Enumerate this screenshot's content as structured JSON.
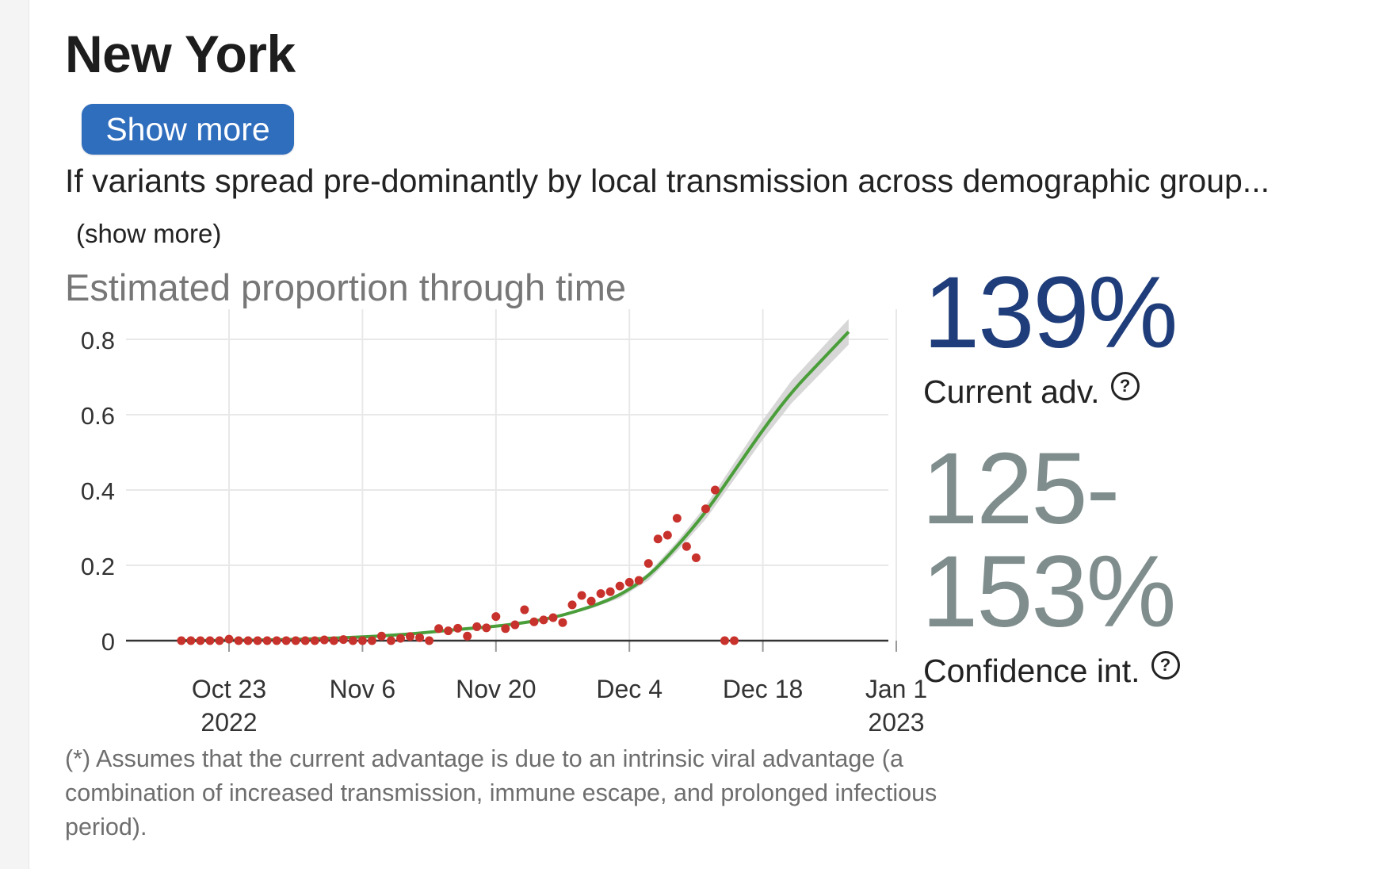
{
  "region": {
    "title": "New York",
    "show_more_button": "Show more",
    "description": "If variants spread pre-dominantly by local transmission across demographic group...",
    "description_more": "(show more)"
  },
  "chart": {
    "title": "Estimated proportion through time",
    "footnote": "(*) Assumes that the current advantage is due to an intrinsic viral advantage (a combination of increased transmission, immune escape, and prolonged infectious period)."
  },
  "stats": {
    "current_advantage": "139%",
    "current_advantage_label": "Current adv.",
    "confidence_interval": "125-153%",
    "confidence_interval_label": "Confidence int.",
    "help_icon_glyph": "?"
  },
  "colors": {
    "accent_button": "#2f6dbd",
    "current_adv": "#1f3d7a",
    "confidence": "#7f8d8c",
    "fit_line": "#4a9e3a",
    "ci_band": "#d3d3d3",
    "points": "#c8322c"
  },
  "chart_data": {
    "type": "scatter",
    "title": "Estimated proportion through time",
    "xlabel": "",
    "ylabel": "",
    "x_axis_type": "date",
    "xlim": [
      "2022-10-16",
      "2023-01-01"
    ],
    "ylim": [
      0,
      0.8
    ],
    "yticks": [
      0,
      0.2,
      0.4,
      0.6,
      0.8
    ],
    "ytick_labels": [
      "0",
      "0.2",
      "0.4",
      "0.6",
      "0.8"
    ],
    "xticks": [
      "2022-10-23",
      "2022-11-06",
      "2022-11-20",
      "2022-12-04",
      "2022-12-18",
      "2023-01-01"
    ],
    "xtick_labels": [
      [
        "Oct 23",
        "2022"
      ],
      [
        "Nov 6",
        ""
      ],
      [
        "Nov 20",
        ""
      ],
      [
        "Dec 4",
        ""
      ],
      [
        "Dec 18",
        ""
      ],
      [
        "Jan 1",
        "2023"
      ]
    ],
    "grid": true,
    "series": [
      {
        "type": "scatter",
        "points": [
          [
            "2022-10-18",
            0.0
          ],
          [
            "2022-10-19",
            0.0
          ],
          [
            "2022-10-20",
            0.0
          ],
          [
            "2022-10-21",
            0.0
          ],
          [
            "2022-10-22",
            0.0
          ],
          [
            "2022-10-23",
            0.004
          ],
          [
            "2022-10-24",
            0.0
          ],
          [
            "2022-10-25",
            0.0
          ],
          [
            "2022-10-26",
            0.0
          ],
          [
            "2022-10-27",
            0.0
          ],
          [
            "2022-10-28",
            0.0
          ],
          [
            "2022-10-29",
            0.0
          ],
          [
            "2022-10-30",
            0.0
          ],
          [
            "2022-10-31",
            0.0
          ],
          [
            "2022-11-01",
            0.0
          ],
          [
            "2022-11-02",
            0.002
          ],
          [
            "2022-11-03",
            0.0
          ],
          [
            "2022-11-04",
            0.003
          ],
          [
            "2022-11-05",
            0.0
          ],
          [
            "2022-11-06",
            0.0
          ],
          [
            "2022-11-07",
            0.0
          ],
          [
            "2022-11-08",
            0.012
          ],
          [
            "2022-11-09",
            0.0
          ],
          [
            "2022-11-10",
            0.006
          ],
          [
            "2022-11-11",
            0.011
          ],
          [
            "2022-11-12",
            0.008
          ],
          [
            "2022-11-13",
            0.0
          ],
          [
            "2022-11-14",
            0.032
          ],
          [
            "2022-11-15",
            0.026
          ],
          [
            "2022-11-16",
            0.033
          ],
          [
            "2022-11-17",
            0.012
          ],
          [
            "2022-11-18",
            0.037
          ],
          [
            "2022-11-19",
            0.034
          ],
          [
            "2022-11-20",
            0.064
          ],
          [
            "2022-11-21",
            0.032
          ],
          [
            "2022-11-22",
            0.042
          ],
          [
            "2022-11-23",
            0.082
          ],
          [
            "2022-11-24",
            0.05
          ],
          [
            "2022-11-25",
            0.055
          ],
          [
            "2022-11-26",
            0.061
          ],
          [
            "2022-11-27",
            0.048
          ],
          [
            "2022-11-28",
            0.095
          ],
          [
            "2022-11-29",
            0.12
          ],
          [
            "2022-11-30",
            0.105
          ],
          [
            "2022-12-01",
            0.125
          ],
          [
            "2022-12-02",
            0.13
          ],
          [
            "2022-12-03",
            0.145
          ],
          [
            "2022-12-04",
            0.155
          ],
          [
            "2022-12-05",
            0.16
          ],
          [
            "2022-12-06",
            0.205
          ],
          [
            "2022-12-07",
            0.27
          ],
          [
            "2022-12-08",
            0.28
          ],
          [
            "2022-12-09",
            0.325
          ],
          [
            "2022-12-10",
            0.25
          ],
          [
            "2022-12-11",
            0.22
          ],
          [
            "2022-12-12",
            0.35
          ],
          [
            "2022-12-13",
            0.4
          ],
          [
            "2022-12-14",
            0.0
          ],
          [
            "2022-12-15",
            0.0
          ]
        ]
      },
      {
        "type": "line",
        "points": [
          [
            "2022-10-18",
            0.0
          ],
          [
            "2022-10-26",
            0.001
          ],
          [
            "2022-11-03",
            0.006
          ],
          [
            "2022-11-10",
            0.015
          ],
          [
            "2022-11-16",
            0.03
          ],
          [
            "2022-11-21",
            0.04
          ],
          [
            "2022-11-26",
            0.06
          ],
          [
            "2022-11-30",
            0.09
          ],
          [
            "2022-12-03",
            0.12
          ],
          [
            "2022-12-06",
            0.17
          ],
          [
            "2022-12-09",
            0.25
          ],
          [
            "2022-12-12",
            0.34
          ],
          [
            "2022-12-15",
            0.45
          ],
          [
            "2022-12-18",
            0.56
          ],
          [
            "2022-12-21",
            0.66
          ],
          [
            "2022-12-24",
            0.74
          ],
          [
            "2022-12-27",
            0.82
          ]
        ],
        "band_half_width": [
          0,
          0,
          0,
          0,
          0.001,
          0.002,
          0.003,
          0.005,
          0.007,
          0.01,
          0.013,
          0.018,
          0.022,
          0.026,
          0.03,
          0.032,
          0.034
        ]
      }
    ]
  }
}
